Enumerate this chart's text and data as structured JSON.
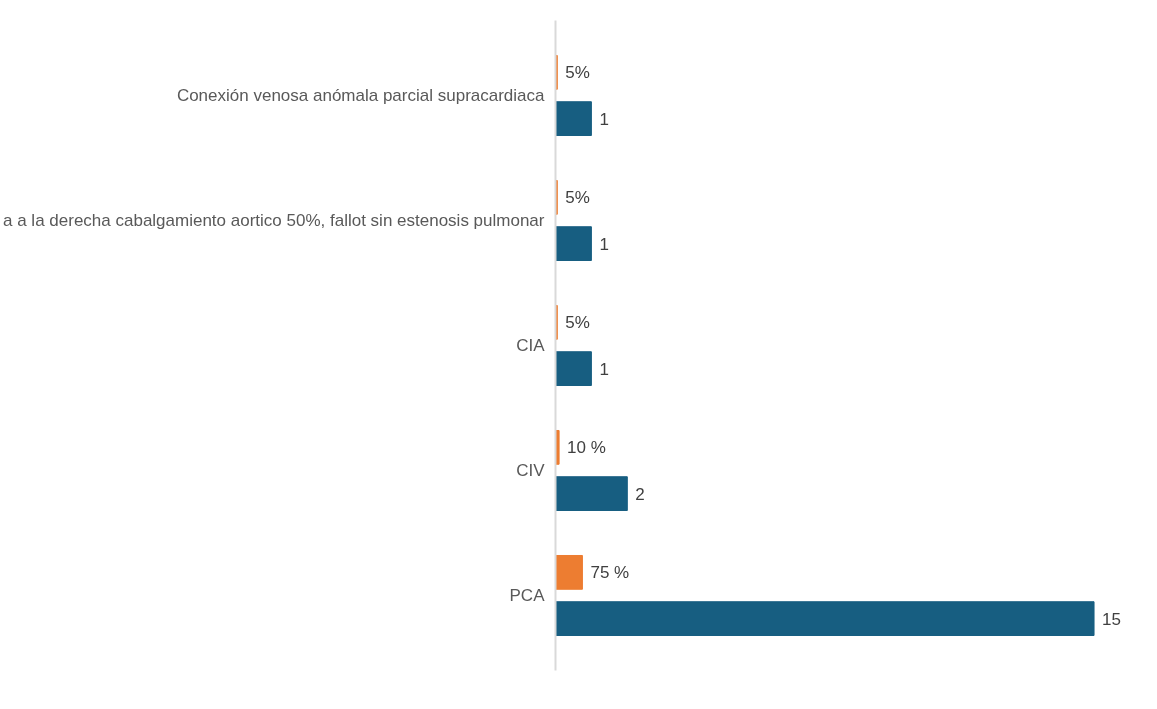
{
  "chart_data": {
    "type": "bar",
    "orientation": "horizontal",
    "tick_labels": "y",
    "categories": [
      "Conexión venosa anómala parcial supracardiaca",
      "a a la derecha cabalgamiento aortico 50%, fallot sin estenosis pulmonar",
      "CIA",
      "CIV",
      "PCA"
    ],
    "series": [
      {
        "color": "#ed7d31",
        "values": [
          0.05,
          0.05,
          0.05,
          0.1,
          0.75
        ],
        "value_labels": [
          "5%",
          "5%",
          "5%",
          "10 %",
          "75 %"
        ]
      },
      {
        "color": "#175e81",
        "values": [
          1,
          1,
          1,
          2,
          15
        ],
        "value_labels": [
          "1",
          "1",
          "1",
          "2",
          "15"
        ]
      }
    ],
    "grid": false
  }
}
